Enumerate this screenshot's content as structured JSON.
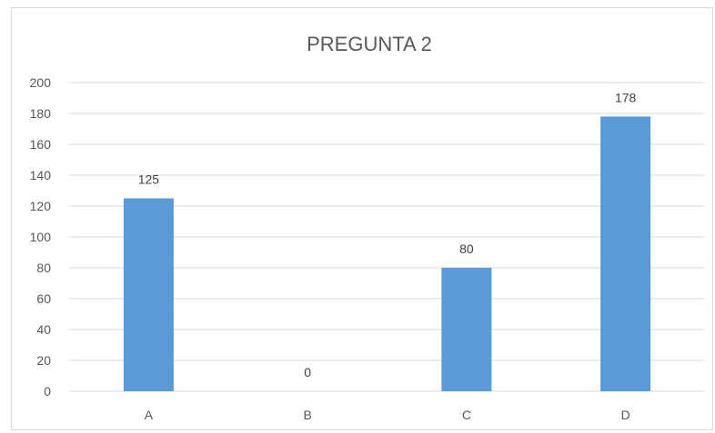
{
  "chart_data": {
    "type": "bar",
    "title": "PREGUNTA 2",
    "categories": [
      "A",
      "B",
      "C",
      "D"
    ],
    "values": [
      125,
      0,
      80,
      178
    ],
    "data_labels": [
      "125",
      "0",
      "80",
      "178"
    ],
    "ylim": [
      0,
      200
    ],
    "yticks": [
      "0",
      "20",
      "40",
      "60",
      "80",
      "100",
      "120",
      "140",
      "160",
      "180",
      "200"
    ],
    "xlabel": "",
    "ylabel": "",
    "grid": true,
    "bar_color": "#5b9bd5",
    "grid_color": "#d9d9d9",
    "text_color": "#595959"
  }
}
